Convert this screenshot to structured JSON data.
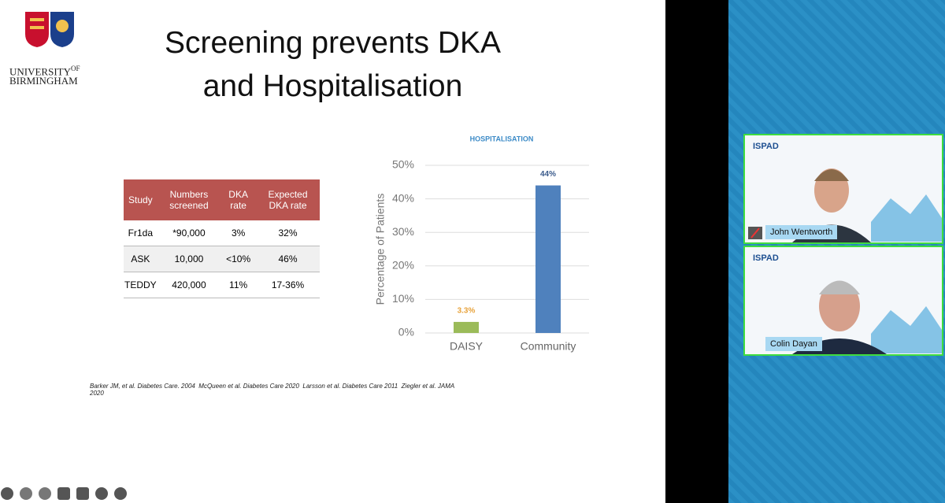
{
  "slide": {
    "title": [
      "Screening prevents DKA",
      "and Hospitalisation"
    ],
    "logo_text": [
      "UNIVERSITY",
      "OF",
      "BIRMINGHAM"
    ],
    "table": {
      "header": [
        "Study",
        "Numbers screened",
        "DKA rate",
        "Expected DKA rate"
      ],
      "rows": [
        [
          "Fr1da",
          "*90,000",
          "3%",
          "32%"
        ],
        [
          "ASK",
          "10,000",
          "<10%",
          "46%"
        ],
        [
          "TEDDY",
          "420,000",
          "11%",
          "17-36%"
        ]
      ]
    },
    "references": [
      "Barker JM, et al. Diabetes Care. 2004",
      "McQueen et al. Diabetes Care 2020",
      "Larsson et al. Diabetes Care 2011",
      "Ziegler et al. JAMA 2020"
    ]
  },
  "chart_data": {
    "type": "bar",
    "title": "HOSPITALISATION",
    "y_label": "Percentage of Patients",
    "categories": [
      "DAISY",
      "Community"
    ],
    "values": [
      3.3,
      44
    ],
    "value_labels": [
      "3.3%",
      "44%"
    ],
    "colors": [
      "#9bbb59",
      "#4f81bd"
    ],
    "label_colors": [
      "#e8a33c",
      "#3b5b8c"
    ],
    "ylim": [
      0,
      50
    ],
    "yticks": [
      {
        "value": 0,
        "label": "0%"
      },
      {
        "value": 10,
        "label": "10%"
      },
      {
        "value": 20,
        "label": "20%"
      },
      {
        "value": 30,
        "label": "30%"
      },
      {
        "value": 40,
        "label": "40%"
      },
      {
        "value": 50,
        "label": "50%"
      }
    ],
    "grid": true
  },
  "participants": [
    {
      "name": "John Wentworth",
      "org": "ISPAD",
      "muted": true
    },
    {
      "name": "Colin Dayan",
      "org": "ISPAD",
      "muted": false
    }
  ]
}
